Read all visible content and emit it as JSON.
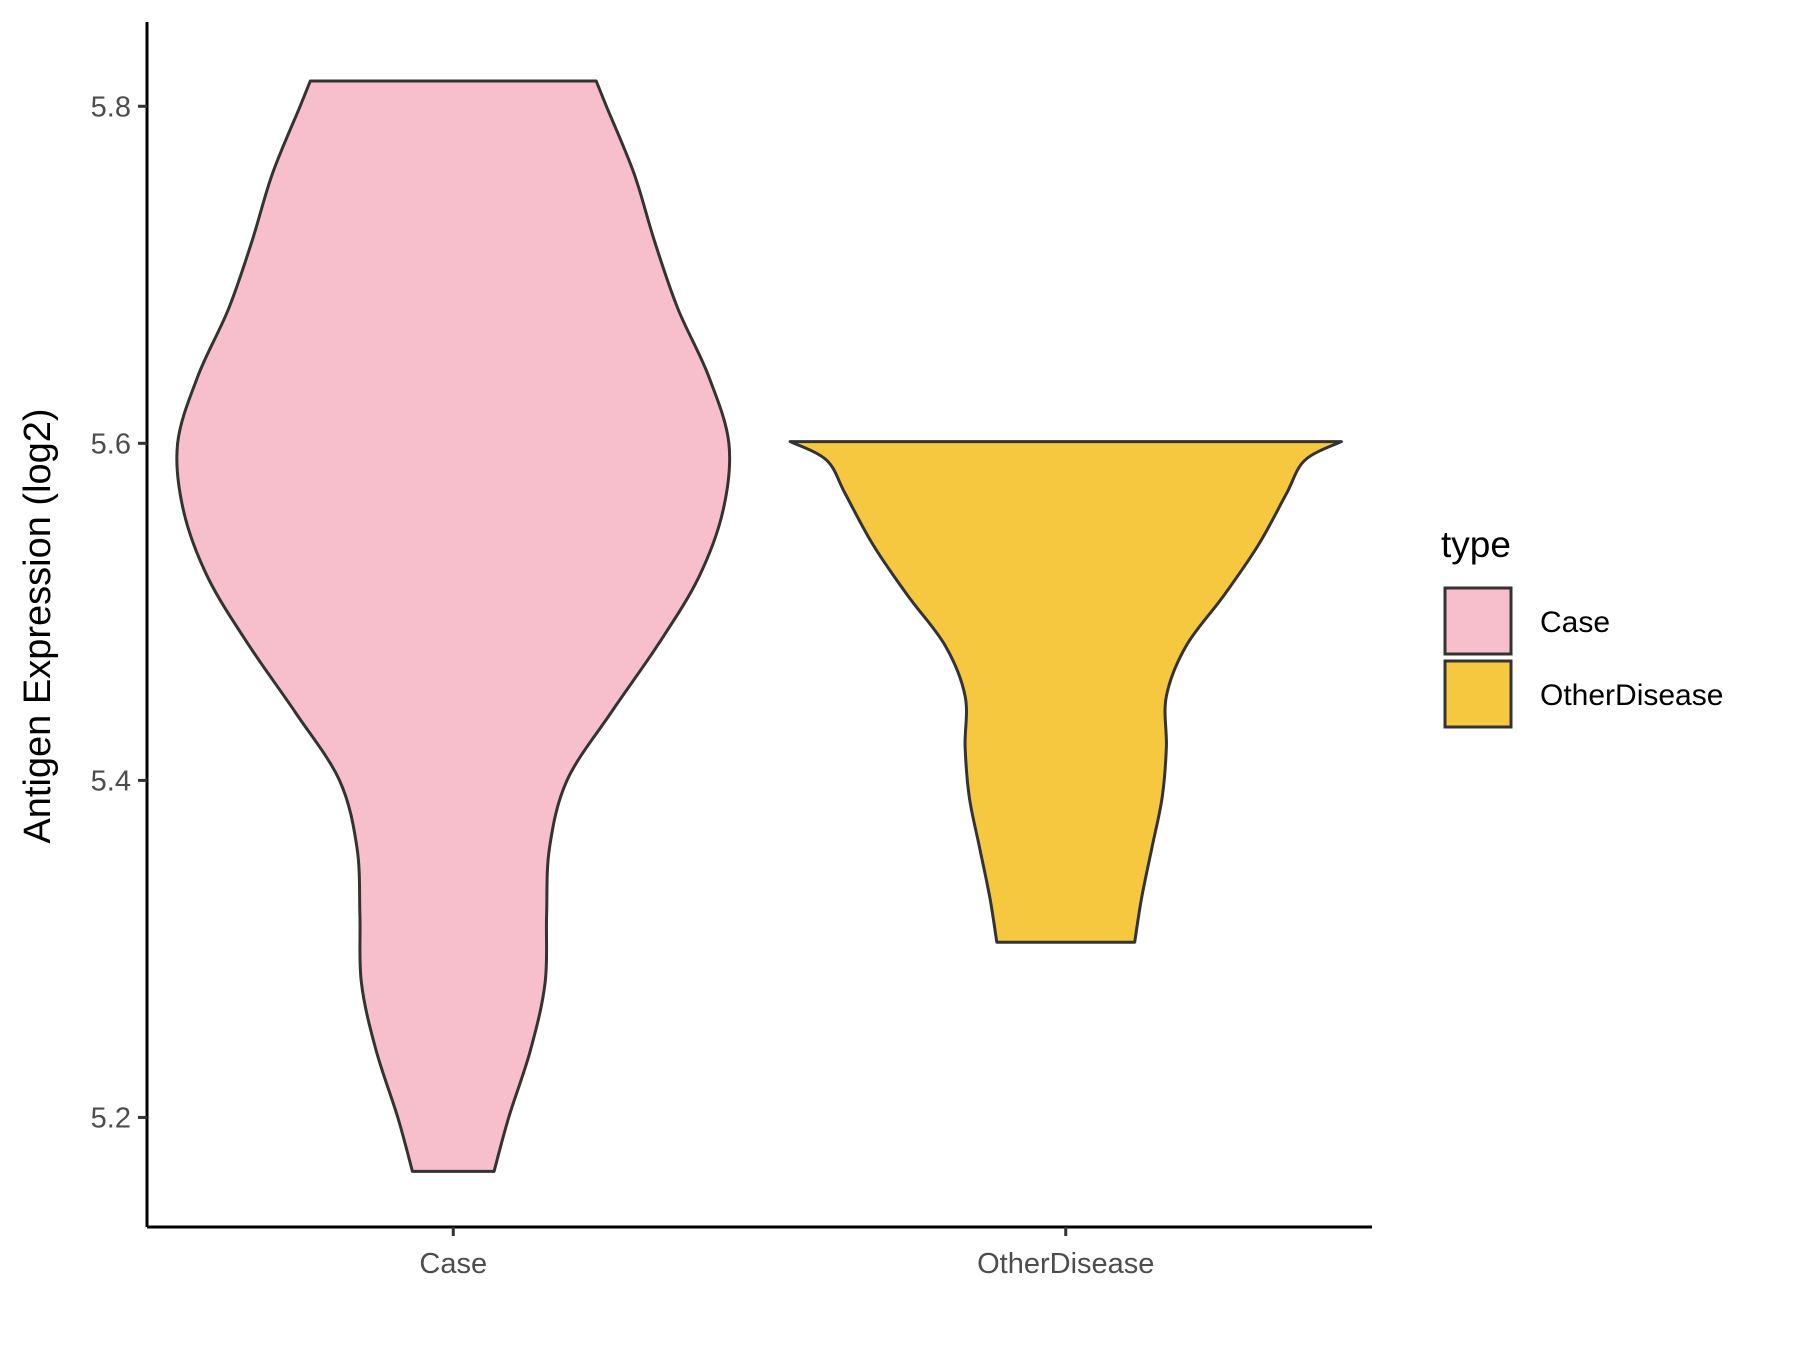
{
  "chart_data": {
    "type": "violin",
    "title": "",
    "xlabel": "",
    "ylabel": "Antigen Expression (log2)",
    "categories": [
      "Case",
      "OtherDisease"
    ],
    "ylim": [
      5.135,
      5.85
    ],
    "y_ticks": [
      "5.2",
      "5.4",
      "5.6",
      "5.8"
    ],
    "series": [
      {
        "name": "Case",
        "color": "#F7BFCB",
        "min": 5.168,
        "max": 5.815,
        "density_profile": [
          [
            5.168,
            0.28
          ],
          [
            5.2,
            0.38
          ],
          [
            5.24,
            0.53
          ],
          [
            5.28,
            0.63
          ],
          [
            5.32,
            0.64
          ],
          [
            5.36,
            0.66
          ],
          [
            5.4,
            0.78
          ],
          [
            5.44,
            1.08
          ],
          [
            5.48,
            1.4
          ],
          [
            5.52,
            1.68
          ],
          [
            5.56,
            1.85
          ],
          [
            5.6,
            1.89
          ],
          [
            5.64,
            1.75
          ],
          [
            5.68,
            1.54
          ],
          [
            5.72,
            1.38
          ],
          [
            5.76,
            1.24
          ],
          [
            5.8,
            1.05
          ],
          [
            5.815,
            0.98
          ]
        ]
      },
      {
        "name": "OtherDisease",
        "color": "#F6C840",
        "min": 5.304,
        "max": 5.601,
        "density_profile": [
          [
            5.304,
            1.0
          ],
          [
            5.33,
            1.1
          ],
          [
            5.36,
            1.25
          ],
          [
            5.39,
            1.4
          ],
          [
            5.42,
            1.46
          ],
          [
            5.45,
            1.46
          ],
          [
            5.48,
            1.75
          ],
          [
            5.51,
            2.3
          ],
          [
            5.54,
            2.8
          ],
          [
            5.57,
            3.2
          ],
          [
            5.59,
            3.47
          ],
          [
            5.601,
            4.0
          ]
        ]
      }
    ],
    "legend": {
      "title": "type",
      "position": "right",
      "entries": [
        {
          "label": "Case",
          "color": "#F7BFCB"
        },
        {
          "label": "OtherDisease",
          "color": "#F6C840"
        }
      ]
    }
  }
}
